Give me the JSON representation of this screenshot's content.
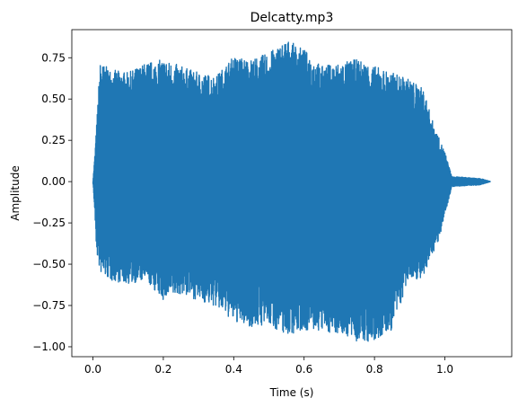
{
  "chart_data": {
    "type": "line",
    "title": "Delcatty.mp3",
    "xlabel": "Time (s)",
    "ylabel": "Amplitude",
    "xlim": [
      -0.06,
      1.19
    ],
    "ylim": [
      -1.06,
      0.92
    ],
    "xticks": [
      "0.0",
      "0.2",
      "0.4",
      "0.6",
      "0.8",
      "1.0"
    ],
    "yticks": [
      "−1.00",
      "−0.75",
      "−0.50",
      "−0.25",
      "0.00",
      "0.25",
      "0.50",
      "0.75"
    ],
    "grid": false,
    "series": [
      {
        "color": "#1f77b4",
        "envelope": {
          "x": [
            0.0,
            0.005,
            0.01,
            0.02,
            0.05,
            0.1,
            0.15,
            0.2,
            0.25,
            0.3,
            0.35,
            0.4,
            0.45,
            0.5,
            0.55,
            0.6,
            0.65,
            0.7,
            0.75,
            0.8,
            0.85,
            0.9,
            0.94,
            0.96,
            0.98,
            1.0,
            1.02,
            1.1,
            1.13
          ],
          "upper": [
            0.0,
            0.15,
            0.33,
            0.72,
            0.68,
            0.66,
            0.72,
            0.74,
            0.7,
            0.66,
            0.64,
            0.76,
            0.74,
            0.78,
            0.86,
            0.8,
            0.7,
            0.72,
            0.74,
            0.7,
            0.66,
            0.62,
            0.56,
            0.4,
            0.28,
            0.18,
            0.03,
            0.02,
            0.0
          ],
          "lower": [
            0.0,
            -0.18,
            -0.42,
            -0.55,
            -0.6,
            -0.62,
            -0.6,
            -0.72,
            -0.68,
            -0.72,
            -0.76,
            -0.85,
            -0.88,
            -0.87,
            -0.93,
            -0.9,
            -0.91,
            -0.92,
            -0.97,
            -0.98,
            -0.9,
            -0.58,
            -0.6,
            -0.45,
            -0.38,
            -0.2,
            -0.03,
            -0.02,
            0.0
          ]
        }
      }
    ]
  }
}
